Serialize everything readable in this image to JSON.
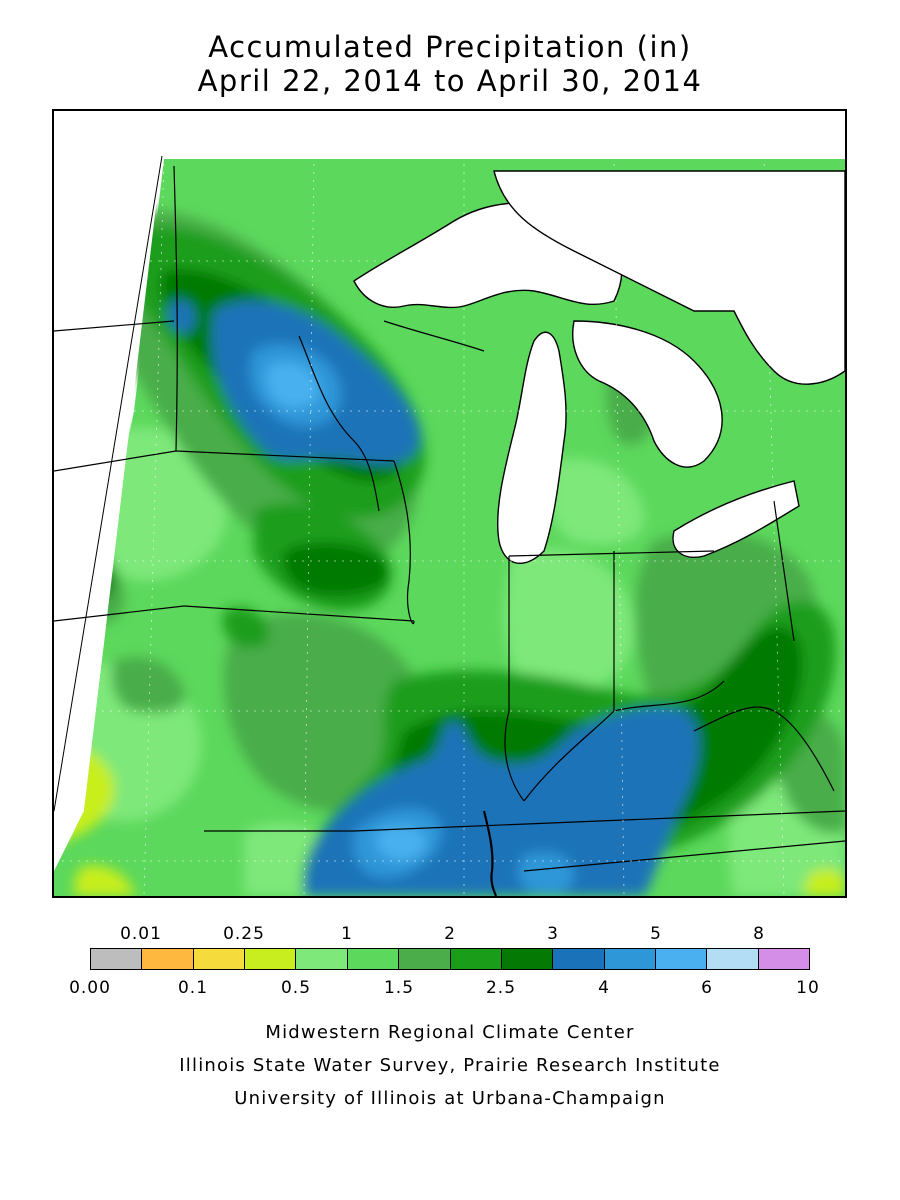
{
  "title": {
    "line1": "Accumulated Precipitation (in)",
    "line2": "April 22, 2014 to April 30, 2014"
  },
  "legend": {
    "top_labels": [
      "0.01",
      "0.25",
      "1",
      "2",
      "3",
      "5",
      "8"
    ],
    "bottom_labels": [
      "0.00",
      "0.1",
      "0.5",
      "1.5",
      "2.5",
      "4",
      "6",
      "10"
    ],
    "colors": [
      "#bdbdbd",
      "#ffb83f",
      "#f5dc3c",
      "#c8ee1f",
      "#7ee87a",
      "#5cd85c",
      "#4aad4a",
      "#1a9e1a",
      "#047a04",
      "#1a73b8",
      "#2d97d8",
      "#4ab0ef",
      "#b3dcf5",
      "#d58ee8"
    ]
  },
  "map": {
    "background_color": "#ffffff",
    "lake_color": "#ffffff",
    "border_color": "#000000"
  },
  "credits": {
    "line1": "Midwestern Regional Climate Center",
    "line2": "Illinois State Water Survey, Prairie Research Institute",
    "line3": "University of Illinois at Urbana-Champaign"
  }
}
